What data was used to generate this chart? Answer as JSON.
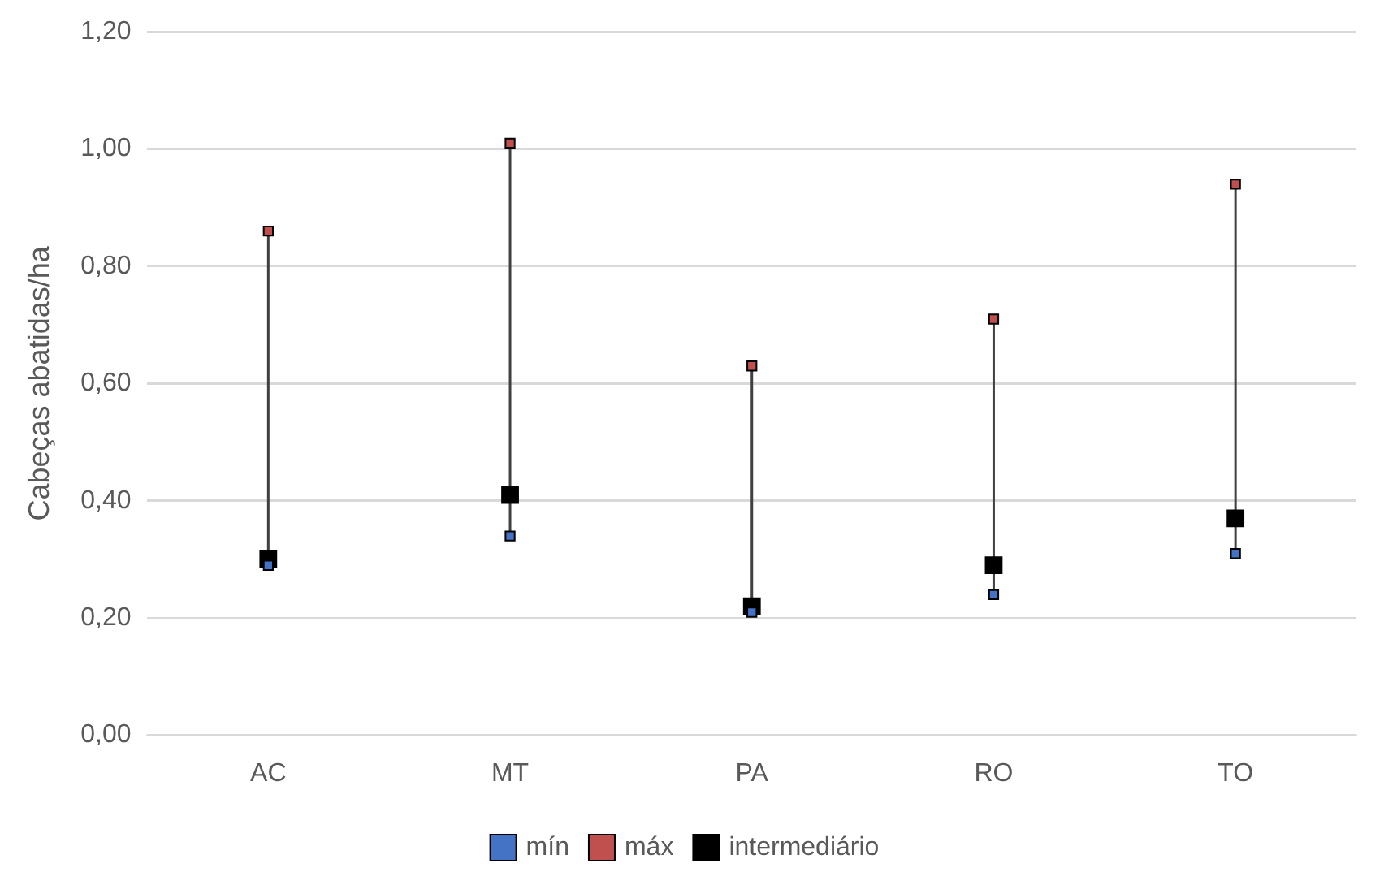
{
  "chart_data": {
    "type": "scatter",
    "ylabel": "Cabeças abatidas/ha",
    "categories": [
      "AC",
      "MT",
      "PA",
      "RO",
      "TO"
    ],
    "ylim": [
      0,
      1.2
    ],
    "yticks": [
      {
        "value": 0,
        "label": "0,00"
      },
      {
        "value": 0.2,
        "label": "0,20"
      },
      {
        "value": 0.4,
        "label": "0,40"
      },
      {
        "value": 0.6,
        "label": "0,60"
      },
      {
        "value": 0.8,
        "label": "0,80"
      },
      {
        "value": 1,
        "label": "1,00"
      },
      {
        "value": 1.2,
        "label": "1,20"
      }
    ],
    "grid": "y",
    "legend": "bottom",
    "series": [
      {
        "name": "mín",
        "color": "#4472c4",
        "marker": "square",
        "values": [
          0.29,
          0.34,
          0.21,
          0.24,
          0.31
        ]
      },
      {
        "name": "máx",
        "color": "#c0504d",
        "marker": "square",
        "values": [
          0.86,
          1.01,
          0.63,
          0.71,
          0.94
        ]
      },
      {
        "name": "intermediário",
        "color": "#000000",
        "marker": "square",
        "values": [
          0.3,
          0.41,
          0.22,
          0.29,
          0.37
        ]
      }
    ]
  }
}
